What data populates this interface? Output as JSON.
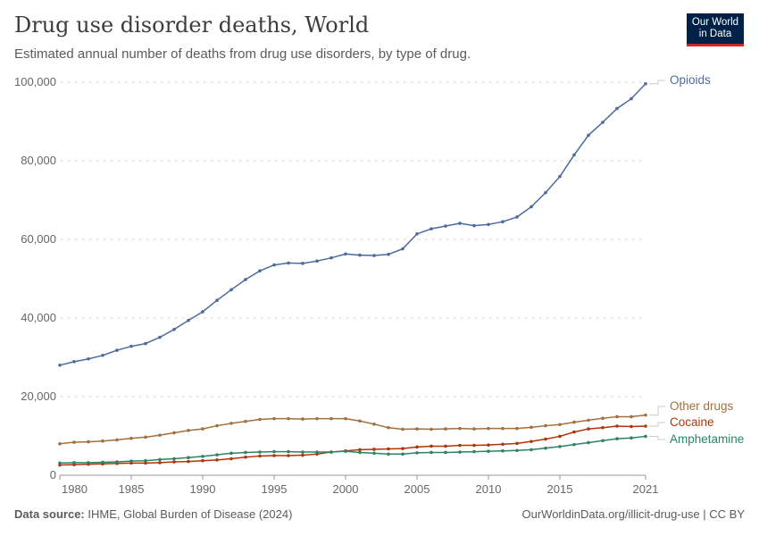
{
  "header": {
    "title": "Drug use disorder deaths, World",
    "subtitle": "Estimated annual number of deaths from drug use disorders, by type of drug.",
    "logo": "Our World in Data"
  },
  "footer": {
    "source_label": "Data source:",
    "source": "IHME, Global Burden of Disease (2024)",
    "url": "OurWorldinData.org/illicit-drug-use | CC BY"
  },
  "chart_data": {
    "type": "line",
    "title": "Drug use disorder deaths, World",
    "x": [
      1980,
      1981,
      1982,
      1983,
      1984,
      1985,
      1986,
      1987,
      1988,
      1989,
      1990,
      1991,
      1992,
      1993,
      1994,
      1995,
      1996,
      1997,
      1998,
      1999,
      2000,
      2001,
      2002,
      2003,
      2004,
      2005,
      2006,
      2007,
      2008,
      2009,
      2010,
      2011,
      2012,
      2013,
      2014,
      2015,
      2016,
      2017,
      2018,
      2019,
      2020,
      2021
    ],
    "xticks": [
      "1980",
      "1985",
      "1990",
      "1995",
      "2000",
      "2005",
      "2010",
      "2015",
      "2021"
    ],
    "yticks": [
      "0",
      "20,000",
      "40,000",
      "60,000",
      "80,000",
      "100,000"
    ],
    "ylim": [
      0,
      100000
    ],
    "grid": "horizontal dashed",
    "legend": "line-end labels",
    "series": [
      {
        "name": "Opioids",
        "color": "#4c6a9c",
        "values": [
          28000,
          28900,
          29600,
          30500,
          31800,
          32800,
          33500,
          35100,
          37100,
          39400,
          41600,
          44500,
          47200,
          49800,
          52000,
          53500,
          54000,
          53900,
          54500,
          55300,
          56300,
          56000,
          55900,
          56200,
          57600,
          61400,
          62700,
          63400,
          64100,
          63500,
          63800,
          64500,
          65700,
          68300,
          71900,
          76000,
          81500,
          86500,
          89800,
          93300,
          95800,
          99600
        ]
      },
      {
        "name": "Other drugs",
        "color": "#a2703c",
        "values": [
          8000,
          8400,
          8500,
          8700,
          9000,
          9400,
          9700,
          10200,
          10800,
          11400,
          11800,
          12600,
          13200,
          13700,
          14200,
          14400,
          14400,
          14300,
          14400,
          14400,
          14400,
          13800,
          13000,
          12100,
          11700,
          11800,
          11700,
          11800,
          11900,
          11800,
          11900,
          11900,
          11900,
          12200,
          12600,
          12900,
          13500,
          14000,
          14500,
          14900,
          14900,
          15300
        ]
      },
      {
        "name": "Cocaine",
        "color": "#b13507",
        "values": [
          2600,
          2700,
          2800,
          2900,
          3000,
          3100,
          3100,
          3200,
          3400,
          3500,
          3700,
          3900,
          4200,
          4600,
          4900,
          5000,
          5000,
          5100,
          5400,
          5900,
          6200,
          6500,
          6600,
          6700,
          6800,
          7200,
          7400,
          7400,
          7600,
          7600,
          7700,
          7900,
          8100,
          8600,
          9200,
          9900,
          11000,
          11800,
          12100,
          12500,
          12400,
          12500
        ]
      },
      {
        "name": "Amphetamine",
        "color": "#2c8465",
        "values": [
          3100,
          3200,
          3200,
          3300,
          3400,
          3600,
          3700,
          4000,
          4200,
          4500,
          4800,
          5200,
          5600,
          5800,
          5900,
          6000,
          6000,
          5900,
          5900,
          5900,
          6100,
          5800,
          5600,
          5400,
          5400,
          5700,
          5800,
          5800,
          5900,
          6000,
          6100,
          6200,
          6300,
          6500,
          6900,
          7300,
          7800,
          8300,
          8800,
          9300,
          9500,
          9900
        ]
      }
    ]
  }
}
